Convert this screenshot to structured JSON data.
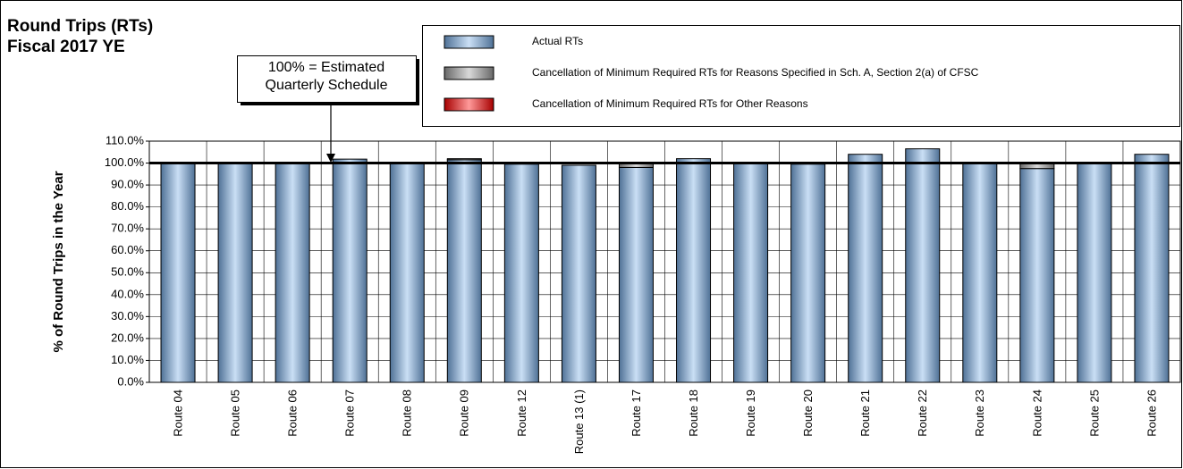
{
  "chart_data": {
    "type": "stacked_bar",
    "title": "Round Trips (RTs)",
    "subtitle": "Fiscal 2017 YE",
    "y_label": "% of Round Trips in the Year",
    "annotation": "100% = Estimated Quarterly Schedule",
    "reference_line": 100,
    "categories": [
      "Route 04",
      "Route 05",
      "Route 06",
      "Route 07",
      "Route 08",
      "Route 09",
      "Route 12",
      "Route 13 (1)",
      "Route 17",
      "Route 18",
      "Route 19",
      "Route 20",
      "Route 21",
      "Route 22",
      "Route 23",
      "Route 24",
      "Route 25",
      "Route 26"
    ],
    "series": [
      {
        "name": "Actual RTs",
        "color": "#7aaee6",
        "values": [
          100,
          99.8,
          100,
          101.8,
          99.8,
          101.5,
          99.5,
          99,
          98,
          102,
          100,
          99.5,
          104,
          106.5,
          99.8,
          97.5,
          99.8,
          104
        ]
      },
      {
        "name": "Cancellation of Minimum Required RTs for Reasons Specified in Sch. A, Section 2(a) of CFSC",
        "color": "#a0a0a0",
        "values": [
          0,
          0,
          0,
          0,
          0,
          0.5,
          0,
          0,
          2,
          0,
          0,
          0,
          0,
          0,
          0,
          2.5,
          0,
          0
        ]
      },
      {
        "name": "Cancellation of Minimum Required RTs for Other Reasons",
        "color": "#ff0000",
        "values": [
          0,
          0,
          0,
          0,
          0,
          0,
          0,
          0,
          0,
          0,
          0,
          0,
          0,
          0,
          0,
          0,
          0,
          0
        ]
      }
    ],
    "ylim": [
      0,
      110
    ],
    "yticks": [
      {
        "value": 0,
        "label": "0.0%"
      },
      {
        "value": 10,
        "label": "10.0%"
      },
      {
        "value": 20,
        "label": "20.0%"
      },
      {
        "value": 30,
        "label": "30.0%"
      },
      {
        "value": 40,
        "label": "40.0%"
      },
      {
        "value": 50,
        "label": "50.0%"
      },
      {
        "value": 60,
        "label": "60.0%"
      },
      {
        "value": 70,
        "label": "70.0%"
      },
      {
        "value": 80,
        "label": "80.0%"
      },
      {
        "value": 90,
        "label": "90.0%"
      },
      {
        "value": 100,
        "label": "100.0%"
      },
      {
        "value": 110,
        "label": "110.0%"
      }
    ],
    "grid": true
  }
}
